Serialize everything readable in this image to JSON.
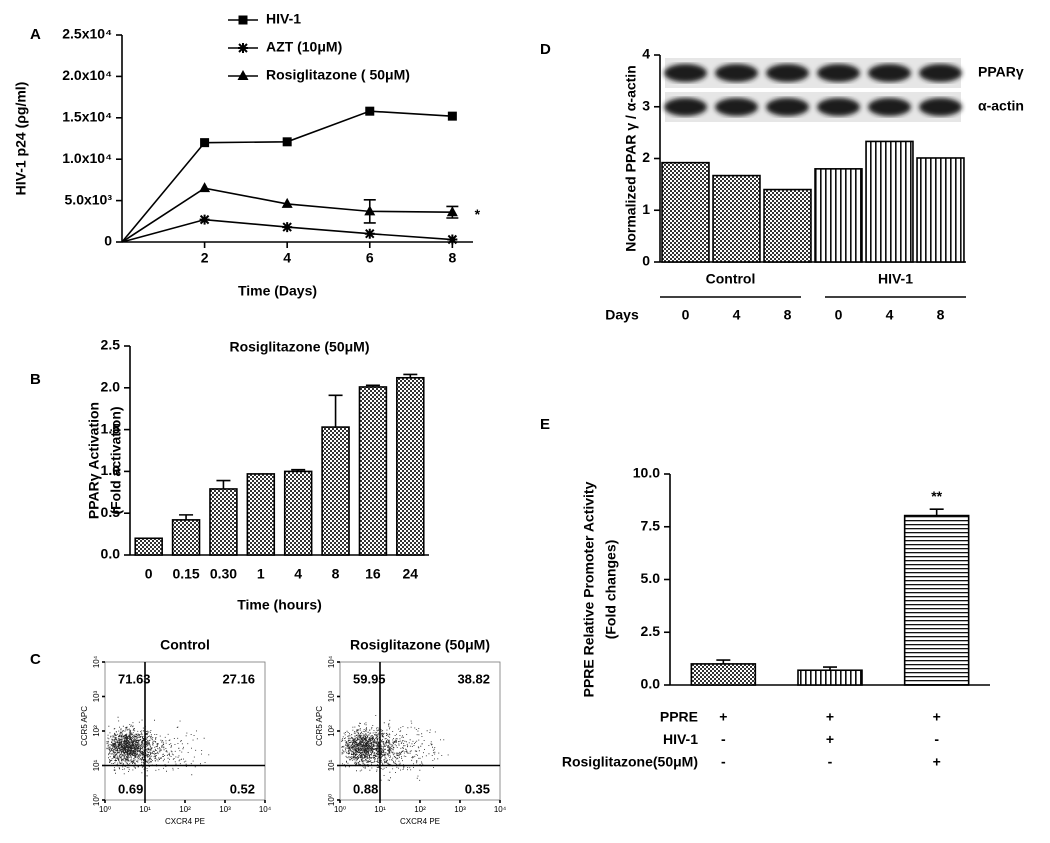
{
  "chart_data": [
    {
      "panel": "A",
      "type": "line",
      "xlabel": "Time (Days)",
      "ylabel": "HIV-1 p24 (ρg/ml)",
      "x": [
        0,
        2,
        4,
        6,
        8
      ],
      "xlim": [
        0,
        8.5
      ],
      "xticks": [
        2,
        4,
        6,
        8
      ],
      "ylim": [
        0,
        25000
      ],
      "yticks": [
        0,
        {
          "value": 5000,
          "label": "5.0x10³"
        },
        {
          "value": 10000,
          "label": "1.0x10⁴"
        },
        {
          "value": 15000,
          "label": "1.5x10⁴"
        },
        {
          "value": 20000,
          "label": "2.0x10⁴"
        },
        {
          "value": 25000,
          "label": "2.5x10⁴"
        }
      ],
      "legend": "top-left",
      "series": [
        {
          "name": "HIV-1",
          "marker": "square",
          "color": "#000000",
          "values": [
            0,
            12000,
            12100,
            15800,
            15200
          ]
        },
        {
          "name": "AZT (10μM)",
          "marker": "asterisk",
          "color": "#000000",
          "values": [
            0,
            2700,
            1800,
            1000,
            300
          ]
        },
        {
          "name": "Rosiglitazone ( 50μM)",
          "marker": "triangle",
          "color": "#000000",
          "values": [
            0,
            6500,
            4600,
            3700,
            3600
          ],
          "errors": [
            0,
            0,
            0,
            1400,
            700
          ]
        }
      ],
      "annotation": "*"
    },
    {
      "panel": "B",
      "type": "bar",
      "title": "Rosiglitazone (50μM)",
      "ylabel": [
        "PPARγ Activation",
        "(Fold activation)"
      ],
      "xlabel": "Time (hours)",
      "categories": [
        "0",
        "0.15",
        "0.30",
        "1",
        "4",
        "8",
        "16",
        "24"
      ],
      "values": [
        0.2,
        0.42,
        0.79,
        0.97,
        1.0,
        1.53,
        2.01,
        2.12
      ],
      "errors": [
        0,
        0.06,
        0.1,
        0,
        0.02,
        0.38,
        0.02,
        0.04
      ],
      "fills": [
        "crosshatch",
        "crosshatch",
        "crosshatch",
        "crosshatch",
        "crosshatch",
        "crosshatch",
        "crosshatch",
        "crosshatch"
      ],
      "ylim": [
        0,
        2.5
      ],
      "yticks": [
        {
          "value": 0,
          "label": "0.0"
        },
        0.5,
        {
          "value": 1,
          "label": "1.0"
        },
        1.5,
        {
          "value": 2,
          "label": "2.0"
        },
        2.5
      ]
    },
    {
      "panel": "C",
      "type": "flow",
      "title": "Control",
      "xlabel": "CXCR4 PE",
      "ylabel": "CCR5 APC",
      "log": true,
      "xlim": [
        1,
        10000
      ],
      "ylim": [
        1,
        10000
      ],
      "xticks": [
        {
          "value": 1,
          "label": "10⁰"
        },
        {
          "value": 10,
          "label": "10¹"
        },
        {
          "value": 100,
          "label": "10²"
        },
        {
          "value": 1000,
          "label": "10³"
        },
        {
          "value": 10000,
          "label": "10⁴"
        }
      ],
      "yticks": [
        {
          "value": 1,
          "label": "10⁰"
        },
        {
          "value": 10,
          "label": "10¹"
        },
        {
          "value": 100,
          "label": "10²"
        },
        {
          "value": 1000,
          "label": "10³"
        },
        {
          "value": 10000,
          "label": "10⁴"
        }
      ],
      "quadrants": {
        "top_left": 71.63,
        "top_right": 27.16,
        "bottom_left": 0.69,
        "bottom_right": 0.52
      }
    },
    {
      "type": "flow",
      "title": "Rosiglitazone (50μM)",
      "xlabel": "CXCR4 PE",
      "ylabel": "CCR5 APC",
      "log": true,
      "xlim": [
        1,
        10000
      ],
      "ylim": [
        1,
        10000
      ],
      "xticks": [
        {
          "value": 1,
          "label": "10⁰"
        },
        {
          "value": 10,
          "label": "10¹"
        },
        {
          "value": 100,
          "label": "10²"
        },
        {
          "value": 1000,
          "label": "10³"
        },
        {
          "value": 10000,
          "label": "10⁴"
        }
      ],
      "yticks": [
        {
          "value": 1,
          "label": "10⁰"
        },
        {
          "value": 10,
          "label": "10¹"
        },
        {
          "value": 100,
          "label": "10²"
        },
        {
          "value": 1000,
          "label": "10³"
        },
        {
          "value": 10000,
          "label": "10⁴"
        }
      ],
      "quadrants": {
        "top_left": 59.95,
        "top_right": 38.82,
        "bottom_left": 0.88,
        "bottom_right": 0.35
      }
    },
    {
      "panel": "D",
      "type": "bar",
      "ylabel": "Normalized PPAR γ / α-actin",
      "categories": [
        "0",
        "4",
        "8",
        "0",
        "4",
        "8"
      ],
      "category_label": "Days",
      "groups": [
        "Control",
        "HIV-1"
      ],
      "values": [
        1.92,
        1.67,
        1.4,
        1.8,
        2.33,
        2.01
      ],
      "fills": [
        "crosshatch",
        "crosshatch",
        "crosshatch",
        "vertical",
        "vertical",
        "vertical"
      ],
      "ylim": [
        0,
        4
      ],
      "yticks": [
        0,
        1,
        2,
        3,
        4
      ],
      "blot_labels": [
        "PPARγ",
        "α-actin"
      ]
    },
    {
      "panel": "E",
      "type": "bar",
      "ylabel": [
        "PPRE Relative Promoter Activity",
        "(Fold changes)"
      ],
      "values": [
        1.0,
        0.7,
        8.03
      ],
      "errors": [
        0.18,
        0.15,
        0.3
      ],
      "fills": [
        "crosshatch",
        "vertical",
        "horizontal"
      ],
      "ylim": [
        0,
        10
      ],
      "yticks": [
        {
          "value": 0,
          "label": "0.0"
        },
        2.5,
        {
          "value": 5,
          "label": "5.0"
        },
        7.5,
        {
          "value": 10,
          "label": "10.0"
        }
      ],
      "conditions": [
        {
          "label": "PPRE",
          "signs": [
            "+",
            "+",
            "+"
          ]
        },
        {
          "label": "HIV-1",
          "signs": [
            "-",
            "+",
            "-"
          ]
        },
        {
          "label": "Rosiglitazone(50μM)",
          "signs": [
            "-",
            "-",
            "+"
          ]
        }
      ],
      "annotation": "**"
    }
  ]
}
